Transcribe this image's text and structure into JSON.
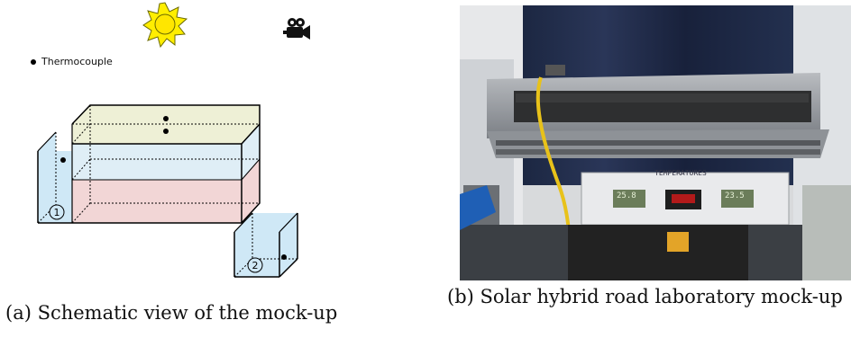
{
  "figure": {
    "panel_a": {
      "legend_label": "Thermocouple",
      "tank1_label": "1",
      "tank2_label": "2",
      "caption": "(a) Schematic view of the mock-up"
    },
    "panel_b": {
      "caption": "(b) Solar hybrid road laboratory mock-up",
      "panel_title": "TEMPERATURES",
      "display_left": "25.8",
      "display_right": "23.5"
    }
  },
  "colors": {
    "top_layer": "#eef0d6",
    "middle_layer": "#dfeef6",
    "bottom_layer": "#f2d6d6",
    "water": "#cfe8f6",
    "sun": "#ffee00"
  }
}
